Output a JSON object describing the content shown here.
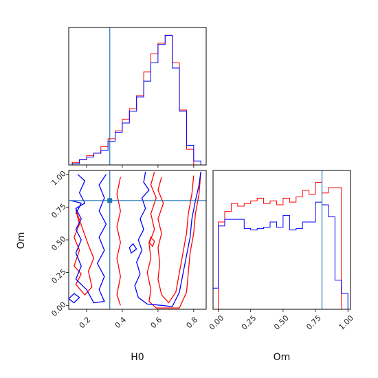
{
  "chart_data": {
    "type": "corner",
    "parameters": [
      "H0",
      "Om"
    ],
    "truth": {
      "H0": 0.33,
      "Om": 0.8
    },
    "series": [
      {
        "color": "#ff0000"
      },
      {
        "color": "#0000ff"
      }
    ],
    "truth_color": "#1f77b4",
    "panels": [
      {
        "id": "hist-H0",
        "type": "step-histogram",
        "xlim": [
          0.1,
          0.87
        ],
        "x_ticks": [
          0.2,
          0.4,
          0.6,
          0.8
        ],
        "bin_edges": [
          0.12,
          0.16,
          0.2,
          0.24,
          0.28,
          0.32,
          0.36,
          0.4,
          0.44,
          0.48,
          0.52,
          0.56,
          0.6,
          0.64,
          0.68,
          0.72,
          0.76,
          0.8,
          0.84
        ],
        "series_values": [
          [
            0.02,
            0.04,
            0.07,
            0.09,
            0.14,
            0.2,
            0.26,
            0.35,
            0.43,
            0.53,
            0.71,
            0.85,
            0.93,
            0.99,
            0.78,
            0.42,
            0.12,
            0.0
          ],
          [
            0.01,
            0.04,
            0.06,
            0.09,
            0.11,
            0.18,
            0.25,
            0.32,
            0.41,
            0.52,
            0.64,
            0.78,
            0.92,
            0.99,
            0.74,
            0.41,
            0.15,
            0.03
          ]
        ]
      },
      {
        "id": "hist-Om",
        "type": "step-histogram",
        "xlim": [
          -0.04,
          1.02
        ],
        "x_ticks": [
          0.0,
          0.25,
          0.5,
          0.75,
          1.0
        ],
        "x_tick_labels": [
          "0.00",
          "0.25",
          "0.50",
          "0.75",
          "1.00"
        ],
        "bin_edges": [
          -0.04,
          0.0,
          0.05,
          0.1,
          0.15,
          0.2,
          0.25,
          0.3,
          0.35,
          0.4,
          0.45,
          0.5,
          0.55,
          0.6,
          0.65,
          0.7,
          0.75,
          0.8,
          0.85,
          0.9,
          0.95,
          1.0
        ],
        "series_values": [
          [
            0.0,
            0.66,
            0.74,
            0.8,
            0.78,
            0.8,
            0.82,
            0.84,
            0.8,
            0.82,
            0.79,
            0.84,
            0.81,
            0.85,
            0.9,
            0.87,
            0.96,
            0.88,
            0.92,
            0.92,
            0.0
          ],
          [
            0.16,
            0.63,
            0.68,
            0.68,
            0.68,
            0.61,
            0.6,
            0.61,
            0.62,
            0.66,
            0.62,
            0.71,
            0.6,
            0.61,
            0.66,
            0.66,
            0.81,
            0.79,
            0.7,
            0.22,
            0.12
          ]
        ]
      },
      {
        "id": "contour-H0-Om",
        "type": "contour",
        "xlim": [
          0.1,
          0.87
        ],
        "ylim": [
          -0.03,
          1.03
        ],
        "x_ticks": [
          0.2,
          0.4,
          0.6,
          0.8
        ],
        "y_ticks": [
          0.0,
          0.25,
          0.5,
          0.75,
          1.0
        ],
        "y_tick_labels": [
          "0.00",
          "0.25",
          "0.50",
          "0.75",
          "1.00"
        ],
        "series_contours": [
          [
            [
              [
                0.58,
                1.02
              ],
              [
                0.56,
                0.92
              ],
              [
                0.59,
                0.82
              ],
              [
                0.56,
                0.7
              ],
              [
                0.58,
                0.58
              ],
              [
                0.55,
                0.47
              ],
              [
                0.56,
                0.36
              ],
              [
                0.54,
                0.25
              ],
              [
                0.56,
                0.12
              ],
              [
                0.55,
                0.03
              ],
              [
                0.59,
                -0.02
              ],
              [
                0.72,
                -0.02
              ],
              [
                0.76,
                0.1
              ],
              [
                0.77,
                0.25
              ],
              [
                0.78,
                0.4
              ],
              [
                0.8,
                0.55
              ],
              [
                0.81,
                0.7
              ],
              [
                0.83,
                0.85
              ],
              [
                0.84,
                1.02
              ]
            ],
            [
              [
                0.62,
                0.98
              ],
              [
                0.6,
                0.88
              ],
              [
                0.63,
                0.78
              ],
              [
                0.6,
                0.66
              ],
              [
                0.62,
                0.55
              ],
              [
                0.6,
                0.44
              ],
              [
                0.61,
                0.32
              ],
              [
                0.6,
                0.2
              ],
              [
                0.62,
                0.08
              ],
              [
                0.66,
                0.02
              ],
              [
                0.7,
                0.1
              ],
              [
                0.72,
                0.25
              ],
              [
                0.74,
                0.4
              ],
              [
                0.76,
                0.55
              ],
              [
                0.77,
                0.7
              ],
              [
                0.79,
                0.85
              ],
              [
                0.8,
                0.99
              ]
            ],
            [
              [
                0.39,
                0.98
              ],
              [
                0.37,
                0.85
              ],
              [
                0.39,
                0.72
              ],
              [
                0.37,
                0.6
              ],
              [
                0.39,
                0.48
              ],
              [
                0.37,
                0.36
              ],
              [
                0.39,
                0.22
              ],
              [
                0.37,
                0.08
              ],
              [
                0.39,
                0.0
              ]
            ],
            [
              [
                0.14,
                0.73
              ],
              [
                0.16,
                0.62
              ],
              [
                0.13,
                0.52
              ],
              [
                0.16,
                0.42
              ],
              [
                0.13,
                0.3
              ],
              [
                0.17,
                0.24
              ],
              [
                0.14,
                0.16
              ],
              [
                0.19,
                0.08
              ],
              [
                0.23,
                0.14
              ],
              [
                0.21,
                0.26
              ],
              [
                0.24,
                0.36
              ],
              [
                0.21,
                0.46
              ]
            ],
            [
              [
                0.57,
                0.45
              ],
              [
                0.58,
                0.49
              ],
              [
                0.56,
                0.52
              ],
              [
                0.55,
                0.48
              ]
            ]
          ],
          [
            [
              [
                0.53,
                1.02
              ],
              [
                0.52,
                0.94
              ],
              [
                0.55,
                0.88
              ],
              [
                0.51,
                0.82
              ],
              [
                0.53,
                0.74
              ],
              [
                0.5,
                0.66
              ],
              [
                0.52,
                0.58
              ],
              [
                0.49,
                0.5
              ],
              [
                0.51,
                0.42
              ],
              [
                0.48,
                0.33
              ],
              [
                0.5,
                0.24
              ],
              [
                0.47,
                0.15
              ],
              [
                0.49,
                0.06
              ],
              [
                0.54,
                0.01
              ],
              [
                0.62,
                0.0
              ],
              [
                0.68,
                -0.01
              ],
              [
                0.72,
                0.1
              ],
              [
                0.74,
                0.24
              ],
              [
                0.76,
                0.38
              ],
              [
                0.78,
                0.52
              ],
              [
                0.79,
                0.66
              ],
              [
                0.81,
                0.8
              ],
              [
                0.83,
                0.92
              ],
              [
                0.84,
                1.02
              ]
            ],
            [
              [
                0.15,
                1.0
              ],
              [
                0.19,
                0.95
              ],
              [
                0.16,
                0.86
              ],
              [
                0.19,
                0.78
              ],
              [
                0.14,
                0.74
              ],
              [
                0.17,
                0.66
              ],
              [
                0.14,
                0.58
              ],
              [
                0.17,
                0.5
              ],
              [
                0.14,
                0.4
              ],
              [
                0.17,
                0.3
              ],
              [
                0.14,
                0.2
              ],
              [
                0.2,
                0.12
              ],
              [
                0.24,
                0.02
              ],
              [
                0.3,
                0.03
              ],
              [
                0.27,
                0.12
              ],
              [
                0.3,
                0.22
              ],
              [
                0.26,
                0.32
              ],
              [
                0.3,
                0.42
              ],
              [
                0.27,
                0.52
              ],
              [
                0.31,
                0.62
              ],
              [
                0.27,
                0.72
              ],
              [
                0.3,
                0.82
              ],
              [
                0.27,
                0.92
              ],
              [
                0.31,
                1.0
              ]
            ],
            [
              [
                0.11,
                0.8
              ],
              [
                0.17,
                0.78
              ],
              [
                0.14,
                0.7
              ]
            ],
            [
              [
                0.1,
                0.05
              ],
              [
                0.13,
                0.02
              ],
              [
                0.16,
                0.06
              ],
              [
                0.13,
                0.09
              ]
            ],
            [
              [
                0.45,
                0.4
              ],
              [
                0.48,
                0.43
              ],
              [
                0.46,
                0.47
              ],
              [
                0.44,
                0.44
              ]
            ]
          ]
        ]
      }
    ]
  }
}
